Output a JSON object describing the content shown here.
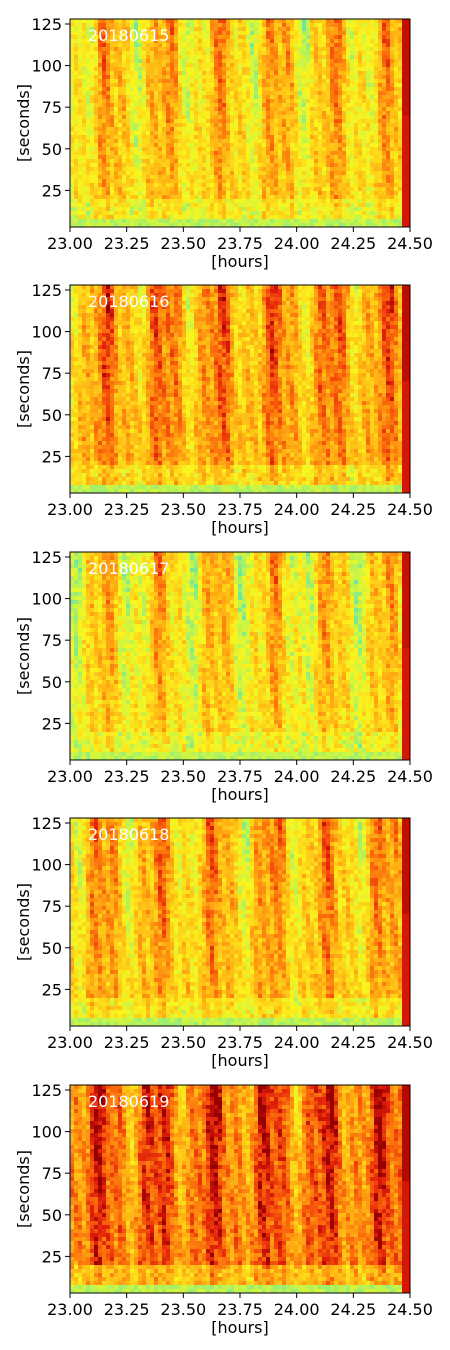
{
  "chart_data": [
    {
      "type": "heatmap",
      "title": "20180615",
      "xlabel": "[hours]",
      "ylabel": "[seconds]",
      "xlim": [
        23.0,
        24.5
      ],
      "ylim": [
        3,
        128
      ],
      "x_ticks": [
        23.0,
        23.25,
        23.5,
        23.75,
        24.0,
        24.25,
        24.5
      ],
      "x_tick_labels": [
        "23.00",
        "23.25",
        "23.50",
        "23.75",
        "24.00",
        "24.25",
        "24.50"
      ],
      "y_ticks": [
        25,
        50,
        75,
        100,
        125
      ],
      "y_tick_labels": [
        "25",
        "50",
        "75",
        "100",
        "125"
      ],
      "colormap": "jet-like",
      "intensity": 0.55,
      "grid": false
    },
    {
      "type": "heatmap",
      "title": "20180616",
      "xlabel": "[hours]",
      "ylabel": "[seconds]",
      "xlim": [
        23.0,
        24.5
      ],
      "ylim": [
        3,
        128
      ],
      "x_ticks": [
        23.0,
        23.25,
        23.5,
        23.75,
        24.0,
        24.25,
        24.5
      ],
      "x_tick_labels": [
        "23.00",
        "23.25",
        "23.50",
        "23.75",
        "24.00",
        "24.25",
        "24.50"
      ],
      "y_ticks": [
        25,
        50,
        75,
        100,
        125
      ],
      "y_tick_labels": [
        "25",
        "50",
        "75",
        "100",
        "125"
      ],
      "colormap": "jet-like",
      "intensity": 0.68,
      "grid": false
    },
    {
      "type": "heatmap",
      "title": "20180617",
      "xlabel": "[hours]",
      "ylabel": "[seconds]",
      "xlim": [
        23.0,
        24.5
      ],
      "ylim": [
        3,
        128
      ],
      "x_ticks": [
        23.0,
        23.25,
        23.5,
        23.75,
        24.0,
        24.25,
        24.5
      ],
      "x_tick_labels": [
        "23.00",
        "23.25",
        "23.50",
        "23.75",
        "24.00",
        "24.25",
        "24.50"
      ],
      "y_ticks": [
        25,
        50,
        75,
        100,
        125
      ],
      "y_tick_labels": [
        "25",
        "50",
        "75",
        "100",
        "125"
      ],
      "colormap": "jet-like",
      "intensity": 0.5,
      "grid": false
    },
    {
      "type": "heatmap",
      "title": "20180618",
      "xlabel": "[hours]",
      "ylabel": "[seconds]",
      "xlim": [
        23.0,
        24.5
      ],
      "ylim": [
        3,
        128
      ],
      "x_ticks": [
        23.0,
        23.25,
        23.5,
        23.75,
        24.0,
        24.25,
        24.5
      ],
      "x_tick_labels": [
        "23.00",
        "23.25",
        "23.50",
        "23.75",
        "24.00",
        "24.25",
        "24.50"
      ],
      "y_ticks": [
        25,
        50,
        75,
        100,
        125
      ],
      "y_tick_labels": [
        "25",
        "50",
        "75",
        "100",
        "125"
      ],
      "colormap": "jet-like",
      "intensity": 0.6,
      "grid": false
    },
    {
      "type": "heatmap",
      "title": "20180619",
      "xlabel": "[hours]",
      "ylabel": "[seconds]",
      "xlim": [
        23.0,
        24.5
      ],
      "ylim": [
        3,
        128
      ],
      "x_ticks": [
        23.0,
        23.25,
        23.5,
        23.75,
        24.0,
        24.25,
        24.5
      ],
      "x_tick_labels": [
        "23.00",
        "23.25",
        "23.50",
        "23.75",
        "24.00",
        "24.25",
        "24.50"
      ],
      "y_ticks": [
        25,
        50,
        75,
        100,
        125
      ],
      "y_tick_labels": [
        "25",
        "50",
        "75",
        "100",
        "125"
      ],
      "colormap": "jet-like",
      "intensity": 0.82,
      "grid": false
    }
  ]
}
